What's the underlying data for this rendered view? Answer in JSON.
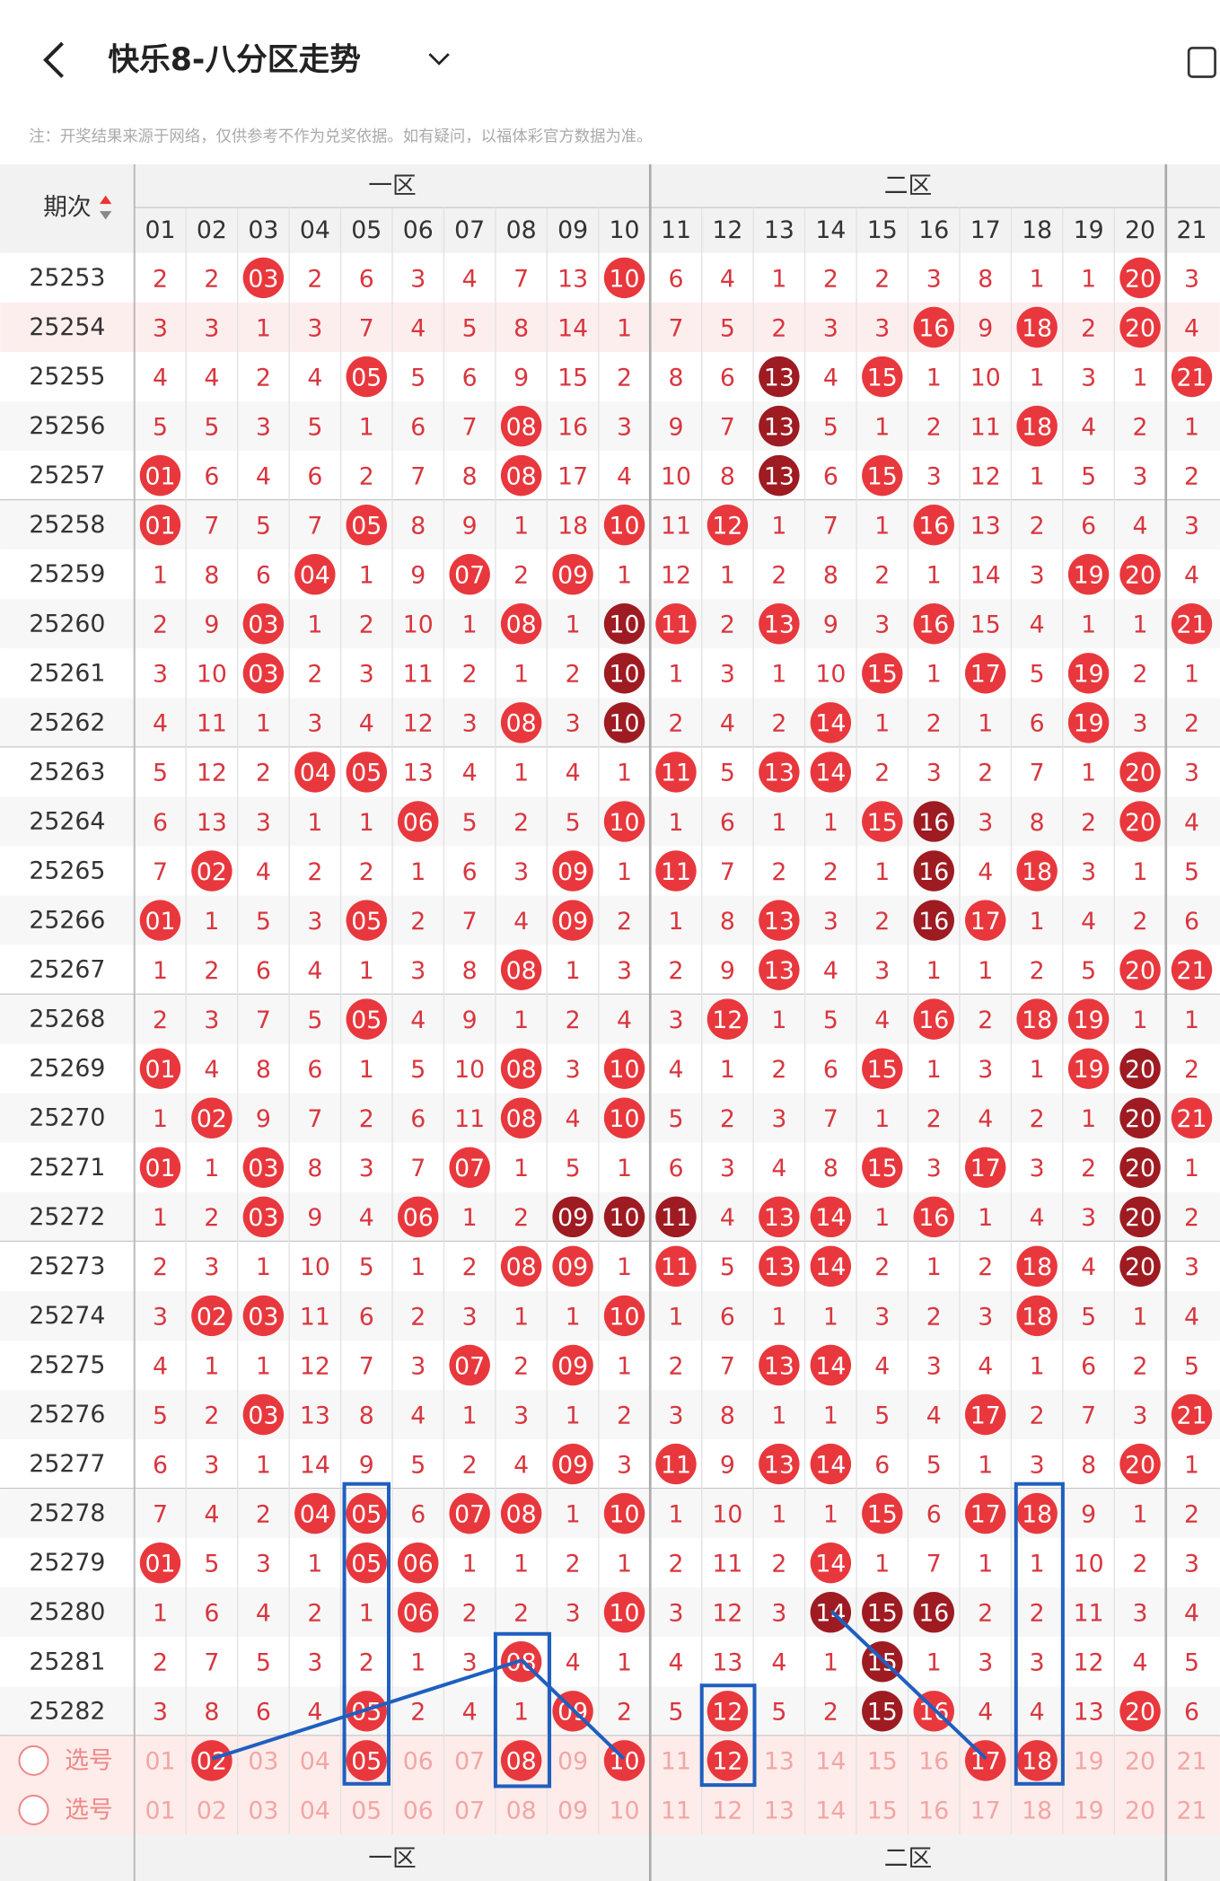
{
  "header": {
    "title": "快乐8-八分区走势",
    "notice": "注：开奖结果来源于网络，仅供参考不作为兑奖依据。如有疑问，以福体彩官方数据为准。"
  },
  "table": {
    "period_label": "期次",
    "zones": [
      "一区",
      "二区"
    ],
    "columns": [
      "01",
      "02",
      "03",
      "04",
      "05",
      "06",
      "07",
      "08",
      "09",
      "10",
      "11",
      "12",
      "13",
      "14",
      "15",
      "16",
      "17",
      "18",
      "19",
      "20",
      "21"
    ],
    "rows": [
      {
        "period": "25253",
        "cells": [
          "2",
          "2",
          "03",
          "2",
          "6",
          "3",
          "4",
          "7",
          "13",
          "10",
          "6",
          "4",
          "1",
          "2",
          "2",
          "3",
          "8",
          "1",
          "1",
          "20",
          "3"
        ],
        "marks": "..R......R.........R."
      },
      {
        "period": "25254",
        "cells": [
          "3",
          "3",
          "1",
          "3",
          "7",
          "4",
          "5",
          "8",
          "14",
          "1",
          "7",
          "5",
          "2",
          "3",
          "3",
          "16",
          "9",
          "18",
          "2",
          "20",
          "4"
        ],
        "marks": "...............R.R.R."
      },
      {
        "period": "25255",
        "cells": [
          "4",
          "4",
          "2",
          "4",
          "05",
          "5",
          "6",
          "9",
          "15",
          "2",
          "8",
          "6",
          "13",
          "4",
          "15",
          "1",
          "10",
          "1",
          "3",
          "1",
          "21"
        ],
        "marks": "....R.......D.R.....R"
      },
      {
        "period": "25256",
        "cells": [
          "5",
          "5",
          "3",
          "5",
          "1",
          "6",
          "7",
          "08",
          "16",
          "3",
          "9",
          "7",
          "13",
          "5",
          "1",
          "2",
          "11",
          "18",
          "4",
          "2",
          "1"
        ],
        "marks": ".......R....D....R..."
      },
      {
        "period": "25257",
        "cells": [
          "01",
          "6",
          "4",
          "6",
          "2",
          "7",
          "8",
          "08",
          "17",
          "4",
          "10",
          "8",
          "13",
          "6",
          "15",
          "3",
          "12",
          "1",
          "5",
          "3",
          "2"
        ],
        "marks": "R......R....D.R......"
      },
      {
        "period": "25258",
        "cells": [
          "01",
          "7",
          "5",
          "7",
          "05",
          "8",
          "9",
          "1",
          "18",
          "10",
          "11",
          "12",
          "1",
          "7",
          "1",
          "16",
          "13",
          "2",
          "6",
          "4",
          "3"
        ],
        "marks": "R...R....R.R...R....."
      },
      {
        "period": "25259",
        "cells": [
          "1",
          "8",
          "6",
          "04",
          "1",
          "9",
          "07",
          "2",
          "09",
          "1",
          "12",
          "1",
          "2",
          "8",
          "2",
          "1",
          "14",
          "3",
          "19",
          "20",
          "4"
        ],
        "marks": "...R..R.R.........RR."
      },
      {
        "period": "25260",
        "cells": [
          "2",
          "9",
          "03",
          "1",
          "2",
          "10",
          "1",
          "08",
          "1",
          "10",
          "11",
          "2",
          "13",
          "9",
          "3",
          "16",
          "15",
          "4",
          "1",
          "1",
          "21"
        ],
        "marks": "..R....R.DR.R..R....R"
      },
      {
        "period": "25261",
        "cells": [
          "3",
          "10",
          "03",
          "2",
          "3",
          "11",
          "2",
          "1",
          "2",
          "10",
          "1",
          "3",
          "1",
          "10",
          "15",
          "1",
          "17",
          "5",
          "19",
          "2",
          "1"
        ],
        "marks": "..R......D....R.R.R.."
      },
      {
        "period": "25262",
        "cells": [
          "4",
          "11",
          "1",
          "3",
          "4",
          "12",
          "3",
          "08",
          "3",
          "10",
          "2",
          "4",
          "2",
          "14",
          "1",
          "2",
          "1",
          "6",
          "19",
          "3",
          "2"
        ],
        "marks": ".......R.D...R....R.."
      },
      {
        "period": "25263",
        "cells": [
          "5",
          "12",
          "2",
          "04",
          "05",
          "13",
          "4",
          "1",
          "4",
          "1",
          "11",
          "5",
          "13",
          "14",
          "2",
          "3",
          "2",
          "7",
          "1",
          "20",
          "3"
        ],
        "marks": "...RR.....R.RR.....R."
      },
      {
        "period": "25264",
        "cells": [
          "6",
          "13",
          "3",
          "1",
          "1",
          "06",
          "5",
          "2",
          "5",
          "10",
          "1",
          "6",
          "1",
          "1",
          "15",
          "16",
          "3",
          "8",
          "2",
          "20",
          "4"
        ],
        "marks": ".....R...R....RD...R."
      },
      {
        "period": "25265",
        "cells": [
          "7",
          "02",
          "4",
          "2",
          "2",
          "1",
          "6",
          "3",
          "09",
          "1",
          "11",
          "7",
          "2",
          "2",
          "1",
          "16",
          "4",
          "18",
          "3",
          "1",
          "5"
        ],
        "marks": ".R......R.R....D.R..."
      },
      {
        "period": "25266",
        "cells": [
          "01",
          "1",
          "5",
          "3",
          "05",
          "2",
          "7",
          "4",
          "09",
          "2",
          "1",
          "8",
          "13",
          "3",
          "2",
          "16",
          "17",
          "1",
          "4",
          "2",
          "6"
        ],
        "marks": "R...R...R...R..DR...."
      },
      {
        "period": "25267",
        "cells": [
          "1",
          "2",
          "6",
          "4",
          "1",
          "3",
          "8",
          "08",
          "1",
          "3",
          "2",
          "9",
          "13",
          "4",
          "3",
          "1",
          "1",
          "2",
          "5",
          "20",
          "21"
        ],
        "marks": ".......R....R......RR"
      },
      {
        "period": "25268",
        "cells": [
          "2",
          "3",
          "7",
          "5",
          "05",
          "4",
          "9",
          "1",
          "2",
          "4",
          "3",
          "12",
          "1",
          "5",
          "4",
          "16",
          "2",
          "18",
          "19",
          "1",
          "1"
        ],
        "marks": "....R......R...R.RR.."
      },
      {
        "period": "25269",
        "cells": [
          "01",
          "4",
          "8",
          "6",
          "1",
          "5",
          "10",
          "08",
          "3",
          "10",
          "4",
          "1",
          "2",
          "6",
          "15",
          "1",
          "3",
          "1",
          "19",
          "20",
          "2"
        ],
        "marks": "R......R.R....R...RD."
      },
      {
        "period": "25270",
        "cells": [
          "1",
          "02",
          "9",
          "7",
          "2",
          "6",
          "11",
          "08",
          "4",
          "10",
          "5",
          "2",
          "3",
          "7",
          "1",
          "2",
          "4",
          "2",
          "1",
          "20",
          "21"
        ],
        "marks": ".R.....R.R.........DR"
      },
      {
        "period": "25271",
        "cells": [
          "01",
          "1",
          "03",
          "8",
          "3",
          "7",
          "07",
          "1",
          "5",
          "1",
          "6",
          "3",
          "4",
          "8",
          "15",
          "3",
          "17",
          "3",
          "2",
          "20",
          "1"
        ],
        "marks": "R.R...R.......R.R..D."
      },
      {
        "period": "25272",
        "cells": [
          "1",
          "2",
          "03",
          "9",
          "4",
          "06",
          "1",
          "2",
          "09",
          "10",
          "11",
          "4",
          "13",
          "14",
          "1",
          "16",
          "1",
          "4",
          "3",
          "20",
          "2"
        ],
        "marks": "..R..R..DDD.RR.R...D."
      },
      {
        "period": "25273",
        "cells": [
          "2",
          "3",
          "1",
          "10",
          "5",
          "1",
          "2",
          "08",
          "09",
          "1",
          "11",
          "5",
          "13",
          "14",
          "2",
          "1",
          "2",
          "18",
          "4",
          "20",
          "3"
        ],
        "marks": ".......RR.R.RR...R.D."
      },
      {
        "period": "25274",
        "cells": [
          "3",
          "02",
          "03",
          "11",
          "6",
          "2",
          "3",
          "1",
          "1",
          "10",
          "1",
          "6",
          "1",
          "1",
          "3",
          "2",
          "3",
          "18",
          "5",
          "1",
          "4"
        ],
        "marks": ".RR......R.......R..."
      },
      {
        "period": "25275",
        "cells": [
          "4",
          "1",
          "1",
          "12",
          "7",
          "3",
          "07",
          "2",
          "09",
          "1",
          "2",
          "7",
          "13",
          "14",
          "4",
          "3",
          "4",
          "1",
          "6",
          "2",
          "5"
        ],
        "marks": "......R.R...RR......."
      },
      {
        "period": "25276",
        "cells": [
          "5",
          "2",
          "03",
          "13",
          "8",
          "4",
          "1",
          "3",
          "1",
          "2",
          "3",
          "8",
          "1",
          "1",
          "5",
          "4",
          "17",
          "2",
          "7",
          "3",
          "21"
        ],
        "marks": "..R.............R...R"
      },
      {
        "period": "25277",
        "cells": [
          "6",
          "3",
          "1",
          "14",
          "9",
          "5",
          "2",
          "4",
          "09",
          "3",
          "11",
          "9",
          "13",
          "14",
          "6",
          "5",
          "1",
          "3",
          "8",
          "20",
          "1"
        ],
        "marks": "........R.R.RR.....R."
      },
      {
        "period": "25278",
        "cells": [
          "7",
          "4",
          "2",
          "04",
          "05",
          "6",
          "07",
          "08",
          "1",
          "10",
          "1",
          "10",
          "1",
          "1",
          "15",
          "6",
          "17",
          "18",
          "9",
          "1",
          "2"
        ],
        "marks": "...RR.RR.R....R.RR..."
      },
      {
        "period": "25279",
        "cells": [
          "01",
          "5",
          "3",
          "1",
          "05",
          "06",
          "1",
          "1",
          "2",
          "1",
          "2",
          "11",
          "2",
          "14",
          "1",
          "7",
          "1",
          "1",
          "10",
          "2",
          "3"
        ],
        "marks": "R...RR.......R......."
      },
      {
        "period": "25280",
        "cells": [
          "1",
          "6",
          "4",
          "2",
          "1",
          "06",
          "2",
          "2",
          "3",
          "10",
          "3",
          "12",
          "3",
          "14",
          "15",
          "16",
          "2",
          "2",
          "11",
          "3",
          "4"
        ],
        "marks": ".....R...R...DDD....."
      },
      {
        "period": "25281",
        "cells": [
          "2",
          "7",
          "5",
          "3",
          "2",
          "1",
          "3",
          "08",
          "4",
          "1",
          "4",
          "13",
          "4",
          "1",
          "15",
          "1",
          "3",
          "3",
          "12",
          "4",
          "5"
        ],
        "marks": ".......R......D......"
      },
      {
        "period": "25282",
        "cells": [
          "3",
          "8",
          "6",
          "4",
          "05",
          "2",
          "4",
          "1",
          "09",
          "2",
          "5",
          "12",
          "5",
          "2",
          "15",
          "16",
          "4",
          "4",
          "13",
          "20",
          "6"
        ],
        "marks": "....R...R..R..DR...R."
      }
    ],
    "pick_rows": [
      {
        "label": "选号",
        "marks": ".R..R..R.R.R....RR..."
      },
      {
        "label": "选号",
        "marks": "....................."
      }
    ]
  }
}
